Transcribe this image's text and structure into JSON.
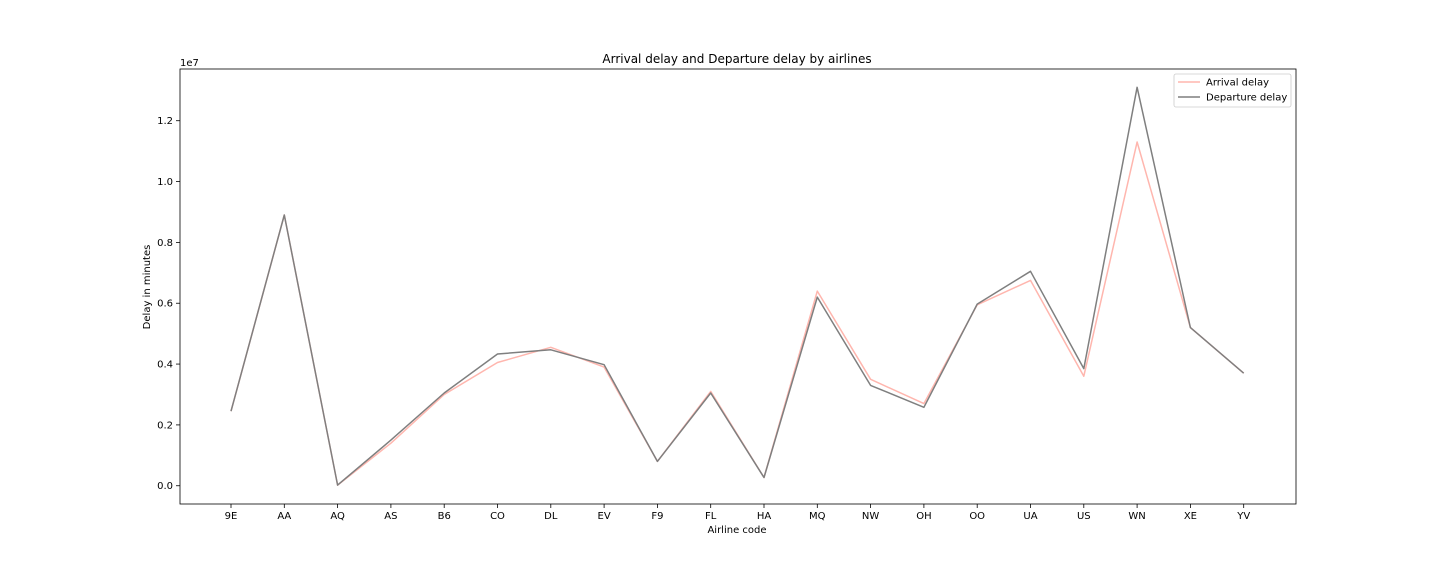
{
  "chart_data": {
    "type": "line",
    "title": "Arrival delay and Departure delay by airlines",
    "xlabel": "Airline code",
    "ylabel": "Delay in minutes",
    "y_offset_label": "1e7",
    "categories": [
      "9E",
      "AA",
      "AQ",
      "AS",
      "B6",
      "CO",
      "DL",
      "EV",
      "F9",
      "FL",
      "HA",
      "MQ",
      "NW",
      "OH",
      "OO",
      "UA",
      "US",
      "WN",
      "XE",
      "YV"
    ],
    "yticks": [
      "0.0",
      "0.2",
      "0.4",
      "0.6",
      "0.8",
      "1.0",
      "1.2"
    ],
    "ylim": [
      -0.06,
      1.37
    ],
    "grid": false,
    "legend_position": "top-right",
    "series": [
      {
        "name": "Arrival delay",
        "color": "#ffb6ae",
        "values": [
          0.245,
          0.89,
          0.002,
          0.14,
          0.3,
          0.405,
          0.455,
          0.39,
          0.08,
          0.31,
          0.027,
          0.64,
          0.35,
          0.27,
          0.595,
          0.675,
          0.36,
          1.13,
          0.52,
          0.37
        ]
      },
      {
        "name": "Departure delay",
        "color": "#7f7f7f",
        "values": [
          0.245,
          0.89,
          0.002,
          0.15,
          0.305,
          0.433,
          0.447,
          0.398,
          0.08,
          0.305,
          0.027,
          0.62,
          0.33,
          0.258,
          0.597,
          0.705,
          0.385,
          1.31,
          0.52,
          0.37
        ]
      }
    ]
  }
}
